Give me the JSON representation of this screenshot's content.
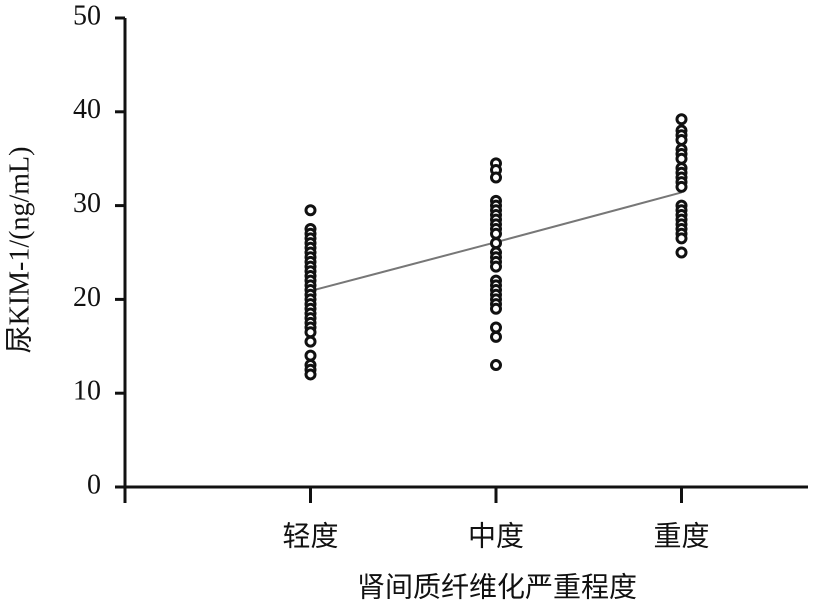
{
  "chart_data": {
    "type": "strip",
    "x_label": "肾间质纤维化严重程度",
    "y_label": "尿KIM-1/(ng/mL)",
    "categories": [
      "轻度",
      "中度",
      "重度"
    ],
    "points": [
      [
        29.5,
        27.5,
        27,
        26.5,
        26,
        25.5,
        25,
        24.5,
        24,
        23.5,
        23,
        22.5,
        22,
        21.5,
        21,
        20.5,
        20,
        19.5,
        19,
        18.5,
        18,
        17.5,
        17,
        16.5,
        15.5,
        14,
        13,
        12.5,
        12
      ],
      [
        34.5,
        33.8,
        33,
        30.5,
        30,
        29.5,
        29,
        28.5,
        28,
        27.5,
        27,
        26,
        25,
        24.5,
        24,
        23.5,
        22,
        21.5,
        21,
        20.5,
        20,
        19.5,
        19,
        17,
        16,
        13
      ],
      [
        39.2,
        38,
        37.5,
        37,
        36,
        35.5,
        35,
        34,
        33.5,
        33,
        32.5,
        32,
        30,
        29.5,
        29,
        28.5,
        28,
        27.5,
        27,
        26.5,
        25
      ]
    ],
    "color": "#111111",
    "trend": {
      "values": [
        20.9,
        26.1,
        31.4
      ],
      "color": "#777777"
    },
    "ylim": [
      0,
      50
    ],
    "yticks": [
      0,
      10,
      20,
      30,
      40,
      50
    ]
  }
}
